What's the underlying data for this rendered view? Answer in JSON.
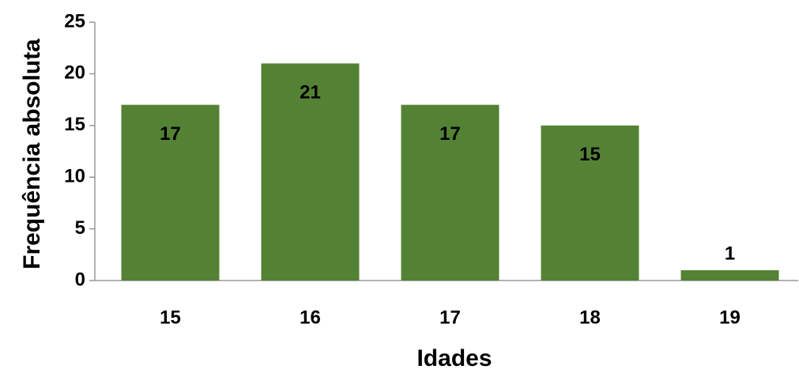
{
  "chart_data": {
    "type": "bar",
    "x_label": "Idades",
    "y_label": "Frequência absoluta",
    "categories": [
      "15",
      "16",
      "17",
      "18",
      "19"
    ],
    "values": [
      17,
      21,
      17,
      15,
      1
    ],
    "color": "#548235",
    "ylim": [
      0,
      25
    ],
    "yticks": [
      0,
      5,
      10,
      15,
      20,
      25
    ],
    "grid": false
  }
}
